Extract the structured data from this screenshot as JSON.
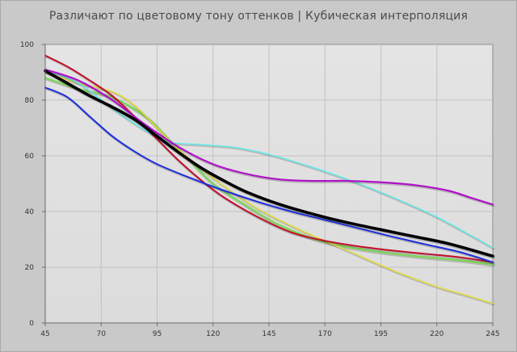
{
  "chart_data": {
    "type": "line",
    "title": "Различают по цветовому тону оттенков | Кубическая интерполяция",
    "xlabel": "",
    "ylabel": "",
    "xlim": [
      45,
      245
    ],
    "ylim": [
      0,
      100
    ],
    "x_ticks": [
      45,
      70,
      95,
      120,
      145,
      170,
      195,
      220,
      245
    ],
    "y_ticks": [
      0,
      20,
      40,
      60,
      80,
      100
    ],
    "grid": true,
    "legend": "none",
    "series": [
      {
        "color": "#7fd65c",
        "width": 2.5,
        "x": [
          45,
          60,
          75,
          90,
          100,
          110,
          120,
          135,
          150,
          170,
          190,
          210,
          230,
          245
        ],
        "y": [
          88,
          84,
          81,
          74,
          66,
          58,
          50,
          42,
          35,
          29,
          26,
          24,
          22.5,
          21
        ]
      },
      {
        "color": "#e0dc3a",
        "width": 1.6,
        "x": [
          45,
          60,
          75,
          85,
          95,
          105,
          120,
          140,
          160,
          180,
          200,
          220,
          235,
          245
        ],
        "y": [
          90,
          86,
          83,
          78,
          70,
          62,
          52,
          41,
          33,
          26,
          19,
          13,
          9.5,
          7
        ]
      },
      {
        "color": "#67e8e8",
        "width": 1.6,
        "x": [
          45,
          60,
          75,
          90,
          100,
          115,
          130,
          145,
          160,
          175,
          190,
          205,
          220,
          235,
          245
        ],
        "y": [
          91,
          86,
          77,
          69,
          65,
          64,
          63,
          60.5,
          57,
          53,
          48.5,
          43.5,
          38,
          31.5,
          27
        ]
      },
      {
        "color": "#c0102a",
        "width": 2,
        "x": [
          45,
          55,
          65,
          75,
          85,
          95,
          105,
          115,
          125,
          140,
          155,
          170,
          185,
          200,
          215,
          230,
          245
        ],
        "y": [
          96,
          92,
          87,
          81.5,
          74,
          66,
          58,
          51,
          45,
          38,
          32.5,
          29.5,
          27.5,
          26,
          24.8,
          23.6,
          21.8
        ]
      },
      {
        "color": "#1c2ee0",
        "width": 2,
        "x": [
          45,
          55,
          65,
          75,
          85,
          95,
          110,
          125,
          140,
          155,
          170,
          185,
          200,
          215,
          230,
          245
        ],
        "y": [
          84.5,
          81,
          74,
          67,
          61.5,
          57,
          52,
          47.5,
          43.5,
          40,
          37,
          34,
          31,
          28.2,
          25.5,
          21.8
        ]
      },
      {
        "color": "#b010c8",
        "width": 2.2,
        "x": [
          45,
          60,
          75,
          90,
          105,
          120,
          135,
          150,
          165,
          180,
          195,
          210,
          225,
          235,
          245
        ],
        "y": [
          91,
          87,
          80,
          71,
          63,
          57,
          53.5,
          51.5,
          51,
          51,
          50.5,
          49.5,
          47.5,
          45,
          42.5
        ]
      },
      {
        "color": "#000000",
        "width": 3.6,
        "x": [
          45,
          55,
          65,
          75,
          85,
          95,
          105,
          115,
          125,
          135,
          150,
          165,
          180,
          195,
          210,
          225,
          245
        ],
        "y": [
          90.5,
          86,
          81.5,
          77.5,
          73,
          67,
          61,
          55.5,
          51,
          47,
          42.5,
          39,
          36,
          33.5,
          31,
          28.5,
          24
        ]
      }
    ]
  }
}
